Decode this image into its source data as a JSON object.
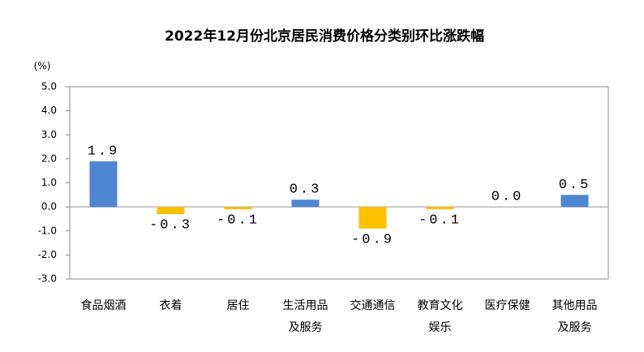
{
  "chart_data": {
    "type": "bar",
    "title": "2022年12月份北京居民消费价格分类别环比涨跌幅",
    "y_unit": "(%)",
    "categories": [
      "食品烟酒",
      "衣着",
      "居住",
      "生活用品及服务",
      "交通通信",
      "教育文化娱乐",
      "医疗保健",
      "其他用品及服务"
    ],
    "values": [
      1.9,
      -0.3,
      -0.1,
      0.3,
      -0.9,
      -0.1,
      0.0,
      0.5
    ],
    "value_labels": [
      "1.9",
      "-0.3",
      "-0.1",
      "0.3",
      "-0.9",
      "-0.1",
      "0.0",
      "0.5"
    ],
    "positive_color": "#4f86d4",
    "negative_color": "#ffc000",
    "ylim": [
      -3,
      5
    ],
    "yticks": [
      {
        "value": -3,
        "label": "-3.0"
      },
      {
        "value": -2,
        "label": "-2.0"
      },
      {
        "value": -1,
        "label": "-1.0"
      },
      {
        "value": 0,
        "label": "0.0"
      },
      {
        "value": 1,
        "label": "1.0"
      },
      {
        "value": 2,
        "label": "2.0"
      },
      {
        "value": 3,
        "label": "3.0"
      },
      {
        "value": 4,
        "label": "4.0"
      },
      {
        "value": 5,
        "label": "5.0"
      }
    ]
  }
}
